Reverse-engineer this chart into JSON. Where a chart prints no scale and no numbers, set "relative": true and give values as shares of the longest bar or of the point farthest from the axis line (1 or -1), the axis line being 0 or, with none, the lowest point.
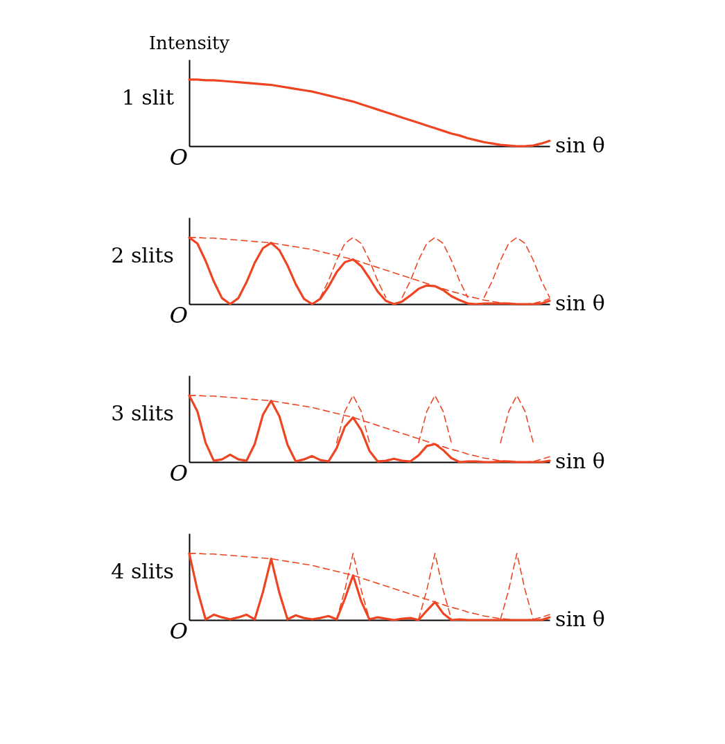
{
  "chart_data": [
    {
      "type": "line",
      "relative": true,
      "title": "1 slit",
      "ylabel": "Intensity",
      "xlabel": "sin θ",
      "annotations": [
        "O"
      ],
      "tick_labels": false,
      "categories": [
        null,
        null,
        null,
        null,
        null,
        null,
        null,
        null,
        null,
        null,
        null,
        null,
        null,
        null,
        null,
        null,
        null,
        null,
        null,
        null,
        null,
        null,
        null,
        null,
        null,
        null,
        null,
        null,
        null,
        null,
        null,
        null,
        null,
        null,
        null,
        null,
        null,
        null,
        null,
        null,
        null,
        null,
        null,
        null,
        null
      ],
      "series": [
        {
          "color": "#ee4422",
          "line_style": "solid",
          "values": [
            1.0,
            1.0,
            0.99,
            0.99,
            0.98,
            0.97,
            0.96,
            0.95,
            0.94,
            0.93,
            0.92,
            0.9,
            0.88,
            0.86,
            0.84,
            0.82,
            0.79,
            0.76,
            0.73,
            0.7,
            0.67,
            0.63,
            0.59,
            0.55,
            0.51,
            0.47,
            0.43,
            0.39,
            0.35,
            0.31,
            0.27,
            0.23,
            0.19,
            0.16,
            0.12,
            0.09,
            0.06,
            0.04,
            0.02,
            0.01,
            0.0,
            0.0,
            0.01,
            0.04,
            0.08
          ]
        }
      ]
    },
    {
      "type": "line",
      "relative": true,
      "title": "2 slits",
      "xlabel": "sin θ",
      "annotations": [
        "O"
      ],
      "tick_labels": false,
      "categories": [
        null,
        null,
        null,
        null,
        null,
        null,
        null,
        null,
        null,
        null,
        null,
        null,
        null,
        null,
        null,
        null,
        null,
        null,
        null,
        null,
        null,
        null,
        null,
        null,
        null,
        null,
        null,
        null,
        null,
        null,
        null,
        null,
        null,
        null,
        null,
        null,
        null,
        null,
        null,
        null,
        null,
        null,
        null,
        null,
        null
      ],
      "series": [
        {
          "color": "#ee4422",
          "line_style": "solid",
          "values": [
            1.0,
            0.91,
            0.65,
            0.34,
            0.09,
            0.0,
            0.09,
            0.33,
            0.62,
            0.84,
            0.92,
            0.81,
            0.58,
            0.3,
            0.08,
            0.0,
            0.08,
            0.26,
            0.48,
            0.63,
            0.67,
            0.57,
            0.39,
            0.19,
            0.05,
            0.0,
            0.04,
            0.13,
            0.23,
            0.28,
            0.27,
            0.21,
            0.12,
            0.06,
            0.01,
            0.0,
            0.01,
            0.01,
            0.01,
            0.01,
            0.0,
            0.0,
            0.0,
            0.01,
            0.05
          ]
        },
        {
          "color": "#ee4422",
          "line_style": "dashed",
          "values": [
            1.0,
            1.0,
            0.99,
            0.99,
            0.98,
            0.97,
            0.96,
            0.95,
            0.94,
            0.93,
            0.92,
            0.9,
            0.88,
            0.86,
            0.84,
            0.82,
            0.79,
            0.76,
            0.73,
            0.7,
            0.67,
            0.63,
            0.59,
            0.55,
            0.51,
            0.47,
            0.43,
            0.39,
            0.35,
            0.31,
            0.27,
            0.23,
            0.19,
            0.16,
            0.12,
            0.09,
            0.06,
            0.04,
            0.02,
            0.01,
            0.0,
            0.0,
            0.01,
            0.04,
            0.08
          ]
        },
        {
          "color": "#ee4422",
          "line_style": "dashed",
          "values": [
            null,
            null,
            null,
            null,
            null,
            null,
            null,
            null,
            null,
            null,
            null,
            null,
            null,
            null,
            null,
            null,
            0.1,
            0.35,
            0.66,
            0.91,
            1.0,
            0.91,
            0.66,
            0.35,
            0.1,
            null,
            0.1,
            0.35,
            0.66,
            0.91,
            1.0,
            0.91,
            0.66,
            0.35,
            0.1,
            null,
            0.1,
            0.35,
            0.66,
            0.91,
            1.0,
            0.91,
            0.66,
            0.35,
            0.1
          ]
        }
      ]
    },
    {
      "type": "line",
      "relative": true,
      "title": "3 slits",
      "xlabel": "sin θ",
      "annotations": [
        "O"
      ],
      "tick_labels": false,
      "categories": [
        null,
        null,
        null,
        null,
        null,
        null,
        null,
        null,
        null,
        null,
        null,
        null,
        null,
        null,
        null,
        null,
        null,
        null,
        null,
        null,
        null,
        null,
        null,
        null,
        null,
        null,
        null,
        null,
        null,
        null,
        null,
        null,
        null,
        null,
        null,
        null,
        null,
        null,
        null,
        null,
        null,
        null,
        null,
        null,
        null
      ],
      "series": [
        {
          "color": "#ee4422",
          "line_style": "solid",
          "values": [
            1.0,
            0.76,
            0.29,
            0.02,
            0.04,
            0.11,
            0.04,
            0.02,
            0.27,
            0.71,
            0.92,
            0.69,
            0.26,
            0.01,
            0.04,
            0.09,
            0.03,
            0.01,
            0.21,
            0.53,
            0.67,
            0.48,
            0.17,
            0.01,
            0.02,
            0.05,
            0.02,
            0.01,
            0.1,
            0.24,
            0.27,
            0.18,
            0.06,
            0.0,
            0.01,
            0.01,
            0.0,
            0.0,
            0.01,
            0.01,
            0.0,
            0.0,
            0.0,
            0.0,
            0.02
          ]
        },
        {
          "color": "#ee4422",
          "line_style": "dashed",
          "values": [
            1.0,
            1.0,
            0.99,
            0.99,
            0.98,
            0.97,
            0.96,
            0.95,
            0.94,
            0.93,
            0.92,
            0.9,
            0.88,
            0.86,
            0.84,
            0.82,
            0.79,
            0.76,
            0.73,
            0.7,
            0.67,
            0.63,
            0.59,
            0.55,
            0.51,
            0.47,
            0.43,
            0.39,
            0.35,
            0.31,
            0.27,
            0.23,
            0.19,
            0.16,
            0.12,
            0.09,
            0.06,
            0.04,
            0.02,
            0.01,
            0.0,
            0.0,
            0.01,
            0.04,
            0.08
          ]
        },
        {
          "color": "#ee4422",
          "line_style": "dashed",
          "values": [
            null,
            null,
            null,
            null,
            null,
            null,
            null,
            null,
            null,
            null,
            null,
            null,
            null,
            null,
            null,
            null,
            null,
            null,
            0.29,
            0.76,
            1.0,
            0.76,
            0.29,
            null,
            null,
            null,
            null,
            null,
            0.29,
            0.76,
            1.0,
            0.76,
            0.29,
            null,
            null,
            null,
            null,
            null,
            0.29,
            0.76,
            1.0,
            0.76,
            0.29,
            null,
            null
          ]
        }
      ]
    },
    {
      "type": "line",
      "relative": true,
      "title": "4 slits",
      "xlabel": "sin θ",
      "annotations": [
        "O"
      ],
      "tick_labels": false,
      "categories": [
        null,
        null,
        null,
        null,
        null,
        null,
        null,
        null,
        null,
        null,
        null,
        null,
        null,
        null,
        null,
        null,
        null,
        null,
        null,
        null,
        null,
        null,
        null,
        null,
        null,
        null,
        null,
        null,
        null,
        null,
        null,
        null,
        null,
        null,
        null,
        null,
        null,
        null,
        null,
        null,
        null,
        null,
        null,
        null,
        null
      ],
      "series": [
        {
          "color": "#ee4422",
          "line_style": "solid",
          "values": [
            1.0,
            0.45,
            0.01,
            0.08,
            0.04,
            0.01,
            0.04,
            0.08,
            0.01,
            0.42,
            0.92,
            0.41,
            0.01,
            0.07,
            0.03,
            0.01,
            0.03,
            0.06,
            0.01,
            0.32,
            0.67,
            0.28,
            0.01,
            0.04,
            0.02,
            0.0,
            0.02,
            0.03,
            0.0,
            0.14,
            0.27,
            0.1,
            0.0,
            0.01,
            0.0,
            0.0,
            0.0,
            0.0,
            0.0,
            0.0,
            0.0,
            0.0,
            0.0,
            0.0,
            0.04
          ]
        },
        {
          "color": "#ee4422",
          "line_style": "dashed",
          "values": [
            1.0,
            1.0,
            0.99,
            0.99,
            0.98,
            0.97,
            0.96,
            0.95,
            0.94,
            0.93,
            0.92,
            0.9,
            0.88,
            0.86,
            0.84,
            0.82,
            0.79,
            0.76,
            0.73,
            0.7,
            0.67,
            0.63,
            0.59,
            0.55,
            0.51,
            0.47,
            0.43,
            0.39,
            0.35,
            0.31,
            0.27,
            0.23,
            0.19,
            0.16,
            0.12,
            0.09,
            0.06,
            0.04,
            0.02,
            0.01,
            0.0,
            0.0,
            0.01,
            0.04,
            0.08
          ]
        },
        {
          "color": "#ee4422",
          "line_style": "dashed",
          "values": [
            null,
            null,
            null,
            null,
            null,
            null,
            null,
            null,
            null,
            null,
            null,
            null,
            null,
            null,
            null,
            null,
            null,
            null,
            0.01,
            0.45,
            1.0,
            0.45,
            0.01,
            null,
            null,
            null,
            null,
            null,
            0.01,
            0.45,
            1.0,
            0.45,
            0.01,
            null,
            null,
            null,
            null,
            null,
            0.01,
            0.45,
            1.0,
            0.45,
            0.01,
            null,
            null
          ]
        }
      ]
    }
  ]
}
